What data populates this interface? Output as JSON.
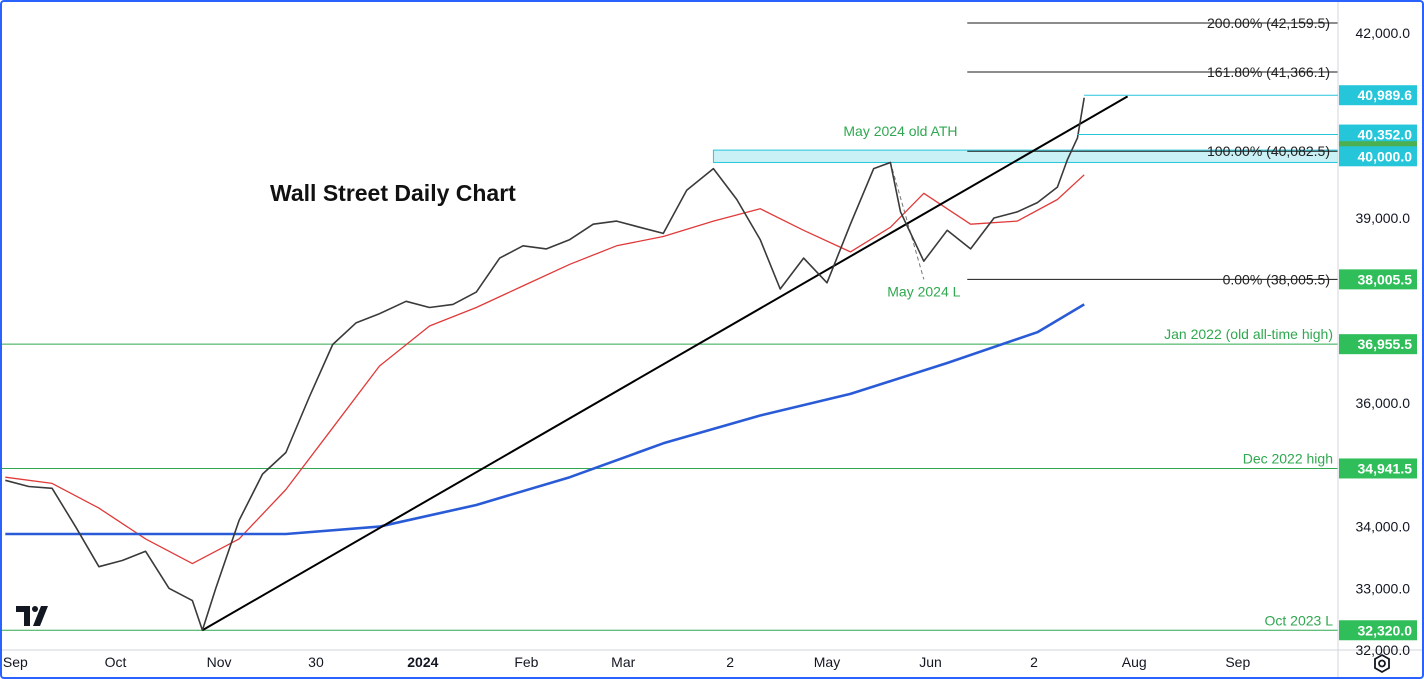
{
  "chart_data": {
    "type": "candlestick",
    "title": "Wall Street Daily Chart",
    "ylim": [
      32000,
      42500
    ],
    "xlim": [
      "2023-08-28",
      "2024-10-01"
    ],
    "y_ticks": [
      "42,000.0",
      "39,000.0",
      "36,000.0",
      "34,000.0",
      "33,000.0",
      "32,000.0"
    ],
    "x_ticks": [
      "Sep",
      "Oct",
      "Nov",
      "30",
      "2024",
      "Feb",
      "Mar",
      "2",
      "May",
      "Jun",
      "2",
      "Aug",
      "Sep"
    ],
    "series": [
      {
        "name": "price",
        "color": "#3a3a3a",
        "x": [
          "2023-08-29",
          "2023-09-05",
          "2023-09-12",
          "2023-09-19",
          "2023-09-26",
          "2023-10-03",
          "2023-10-10",
          "2023-10-17",
          "2023-10-24",
          "2023-10-27",
          "2023-10-31",
          "2023-11-07",
          "2023-11-14",
          "2023-11-21",
          "2023-11-28",
          "2023-12-05",
          "2023-12-12",
          "2023-12-19",
          "2023-12-27",
          "2024-01-03",
          "2024-01-10",
          "2024-01-17",
          "2024-01-24",
          "2024-01-31",
          "2024-02-07",
          "2024-02-14",
          "2024-02-21",
          "2024-02-28",
          "2024-03-06",
          "2024-03-13",
          "2024-03-20",
          "2024-03-28",
          "2024-04-04",
          "2024-04-11",
          "2024-04-17",
          "2024-04-24",
          "2024-05-01",
          "2024-05-08",
          "2024-05-15",
          "2024-05-20",
          "2024-05-23",
          "2024-05-30",
          "2024-06-06",
          "2024-06-13",
          "2024-06-20",
          "2024-06-27",
          "2024-07-03",
          "2024-07-09",
          "2024-07-12",
          "2024-07-15",
          "2024-07-17"
        ],
        "y": [
          34750,
          34650,
          34620,
          34000,
          33350,
          33450,
          33600,
          33000,
          32800,
          32320,
          33000,
          34100,
          34850,
          35200,
          36100,
          36950,
          37300,
          37450,
          37650,
          37550,
          37600,
          37800,
          38350,
          38550,
          38500,
          38650,
          38900,
          38950,
          38850,
          38750,
          39450,
          39800,
          39300,
          38650,
          37850,
          38350,
          37950,
          38900,
          39800,
          39900,
          39100,
          38300,
          38800,
          38500,
          39000,
          39100,
          39250,
          39500,
          39950,
          40300,
          40950
        ]
      }
    ],
    "moving_averages": [
      {
        "name": "20-day MA",
        "color": "#e03a3a",
        "x": [
          "2023-08-29",
          "2023-09-12",
          "2023-09-26",
          "2023-10-10",
          "2023-10-24",
          "2023-11-07",
          "2023-11-21",
          "2023-12-05",
          "2023-12-19",
          "2024-01-03",
          "2024-01-17",
          "2024-01-31",
          "2024-02-14",
          "2024-02-28",
          "2024-03-13",
          "2024-03-28",
          "2024-04-11",
          "2024-04-24",
          "2024-05-08",
          "2024-05-20",
          "2024-05-30",
          "2024-06-13",
          "2024-06-27",
          "2024-07-09",
          "2024-07-17"
        ],
        "y": [
          34800,
          34700,
          34300,
          33800,
          33400,
          33800,
          34600,
          35600,
          36600,
          37250,
          37550,
          37900,
          38250,
          38550,
          38700,
          38950,
          39150,
          38800,
          38450,
          38850,
          39400,
          38900,
          38950,
          39300,
          39700
        ]
      },
      {
        "name": "200-day MA",
        "color": "#2a5bd7",
        "x": [
          "2023-08-29",
          "2023-09-26",
          "2023-10-24",
          "2023-11-21",
          "2023-12-19",
          "2024-01-17",
          "2024-02-14",
          "2024-03-13",
          "2024-04-11",
          "2024-05-08",
          "2024-06-06",
          "2024-07-03",
          "2024-07-17"
        ],
        "y": [
          33880,
          33880,
          33880,
          33880,
          34000,
          34350,
          34800,
          35350,
          35800,
          36150,
          36650,
          37150,
          37600
        ]
      }
    ],
    "trendlines": [
      {
        "from": {
          "x": "2023-10-27",
          "y": 32320
        },
        "to": {
          "x": "2024-07-30",
          "y": 40970
        },
        "color": "#000000"
      }
    ],
    "horizontal_levels": [
      {
        "label": "Jan 2022 (old all-time high)",
        "value": 36955.5,
        "badge": "36,955.5",
        "color": "#2fa84f"
      },
      {
        "label": "Dec 2022 high",
        "value": 34941.5,
        "badge": "34,941.5",
        "color": "#2fa84f"
      },
      {
        "label": "Oct 2023 L",
        "value": 32320.0,
        "badge": "32,320.0",
        "color": "#2fa84f"
      }
    ],
    "fibonacci": [
      {
        "label": "200.00% (42,159.5)",
        "value": 42159.5
      },
      {
        "label": "161.80% (41,366.1)",
        "value": 41366.1
      },
      {
        "label": "100.00% (40,082.5)",
        "value": 40082.5
      },
      {
        "label": "0.00% (38,005.5)",
        "value": 38005.5
      }
    ],
    "annotations": [
      {
        "text": "May 2024 old ATH",
        "color": "#2fa84f"
      },
      {
        "text": "May 2024 L",
        "color": "#2fa84f"
      }
    ],
    "price_badges": [
      {
        "text": "40,989.6",
        "value": 40989.6,
        "color": "#26c6da"
      },
      {
        "text": "40,352.0",
        "value": 40352.0,
        "color": "#26c6da"
      },
      {
        "text": "40,082.5",
        "value": 40082.5,
        "color": "#4caf50"
      },
      {
        "text": "40,000.0",
        "value": 40000.0,
        "color": "#26c6da"
      },
      {
        "text": "38,005.5",
        "value": 38005.5,
        "color": "#2fbe5a"
      }
    ],
    "resistance_zone": {
      "low": 39900,
      "high": 40100,
      "color": "#26c6da"
    },
    "grid": false,
    "logo": "TV"
  },
  "icons": {
    "settings": "gear-icon"
  }
}
